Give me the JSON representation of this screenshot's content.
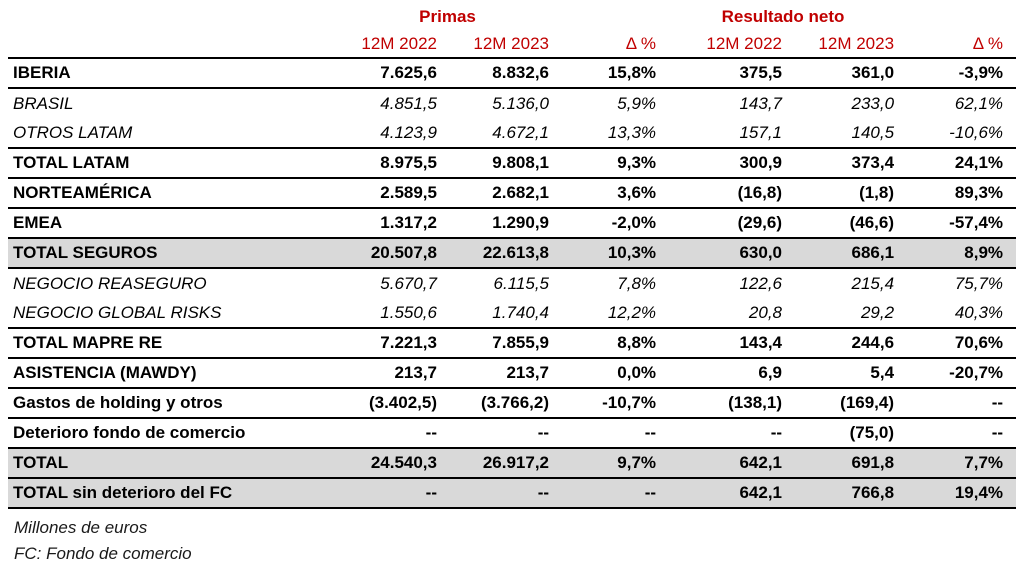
{
  "colors": {
    "accent_red": "#C00000",
    "total_row_gray": "#D9D9D9",
    "line_black": "#000000",
    "background": "#ffffff"
  },
  "table": {
    "group_headers": {
      "primas": "Primas",
      "resultado_neto": "Resultado neto"
    },
    "column_headers": [
      "12M 2022",
      "12M 2023",
      "Δ %",
      "12M 2022",
      "12M 2023",
      "Δ %"
    ],
    "rows": [
      {
        "label": "IBERIA",
        "style": "bold",
        "gray": false,
        "separator_below": true,
        "values": [
          "7.625,6",
          "8.832,6",
          "15,8%",
          "375,5",
          "361,0",
          "-3,9%"
        ]
      },
      {
        "label": "BRASIL",
        "style": "italic",
        "gray": false,
        "separator_below": false,
        "values": [
          "4.851,5",
          "5.136,0",
          "5,9%",
          "143,7",
          "233,0",
          "62,1%"
        ]
      },
      {
        "label": "OTROS LATAM",
        "style": "italic",
        "gray": false,
        "separator_below": true,
        "values": [
          "4.123,9",
          "4.672,1",
          "13,3%",
          "157,1",
          "140,5",
          "-10,6%"
        ]
      },
      {
        "label": "TOTAL LATAM",
        "style": "bold",
        "gray": false,
        "separator_below": true,
        "values": [
          "8.975,5",
          "9.808,1",
          "9,3%",
          "300,9",
          "373,4",
          "24,1%"
        ]
      },
      {
        "label": "NORTEAMÉRICA",
        "style": "bold",
        "gray": false,
        "separator_below": true,
        "values": [
          "2.589,5",
          "2.682,1",
          "3,6%",
          "(16,8)",
          "(1,8)",
          "89,3%"
        ]
      },
      {
        "label": "EMEA",
        "style": "bold",
        "gray": false,
        "separator_below": true,
        "values": [
          "1.317,2",
          "1.290,9",
          "-2,0%",
          "(29,6)",
          "(46,6)",
          "-57,4%"
        ]
      },
      {
        "label": "TOTAL SEGUROS",
        "style": "bold",
        "gray": true,
        "separator_below": true,
        "values": [
          "20.507,8",
          "22.613,8",
          "10,3%",
          "630,0",
          "686,1",
          "8,9%"
        ]
      },
      {
        "label": "NEGOCIO REASEGURO",
        "style": "italic",
        "gray": false,
        "separator_below": false,
        "values": [
          "5.670,7",
          "6.115,5",
          "7,8%",
          "122,6",
          "215,4",
          "75,7%"
        ]
      },
      {
        "label": "NEGOCIO GLOBAL RISKS",
        "style": "italic",
        "gray": false,
        "separator_below": true,
        "values": [
          "1.550,6",
          "1.740,4",
          "12,2%",
          "20,8",
          "29,2",
          "40,3%"
        ]
      },
      {
        "label": "TOTAL MAPRE RE",
        "style": "bold",
        "gray": false,
        "separator_below": true,
        "values": [
          "7.221,3",
          "7.855,9",
          "8,8%",
          "143,4",
          "244,6",
          "70,6%"
        ]
      },
      {
        "label": "ASISTENCIA (MAWDY)",
        "style": "bold",
        "gray": false,
        "separator_below": true,
        "values": [
          "213,7",
          "213,7",
          "0,0%",
          "6,9",
          "5,4",
          "-20,7%"
        ]
      },
      {
        "label": "Gastos de holding y otros",
        "style": "bold",
        "gray": false,
        "separator_below": true,
        "values": [
          "(3.402,5)",
          "(3.766,2)",
          "-10,7%",
          "(138,1)",
          "(169,4)",
          "--"
        ]
      },
      {
        "label": "Deterioro fondo de comercio",
        "style": "bold",
        "gray": false,
        "separator_below": true,
        "values": [
          "--",
          "--",
          "--",
          "--",
          "(75,0)",
          "--"
        ]
      },
      {
        "label": "TOTAL",
        "style": "bold",
        "gray": true,
        "separator_below": true,
        "values": [
          "24.540,3",
          "26.917,2",
          "9,7%",
          "642,1",
          "691,8",
          "7,7%"
        ]
      },
      {
        "label": "TOTAL sin deterioro del FC",
        "style": "bold",
        "gray": true,
        "separator_below": false,
        "values": [
          "--",
          "--",
          "--",
          "642,1",
          "766,8",
          "19,4%"
        ]
      }
    ]
  },
  "footnotes": {
    "units": "Millones de euros",
    "abbreviation": "FC: Fondo de comercio"
  }
}
